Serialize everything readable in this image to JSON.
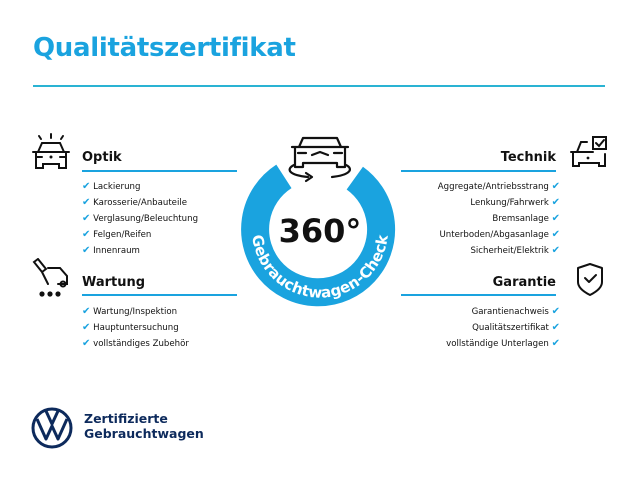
{
  "title": "Qualitätszertifikat",
  "center": {
    "degrees": "360°",
    "ring_text": "Gebrauchtwagen-Check"
  },
  "colors": {
    "accent": "#1aa3df",
    "brand_dark": "#0d2a5c"
  },
  "sections": {
    "optik": {
      "icon": "car-lights-icon",
      "heading": "Optik",
      "items": [
        "Lackierung",
        "Karosserie/Anbauteile",
        "Verglasung/Beleuchtung",
        "Felgen/Reifen",
        "Innenraum"
      ]
    },
    "wartung": {
      "icon": "maintenance-car-icon",
      "heading": "Wartung",
      "items": [
        "Wartung/Inspektion",
        "Hauptuntersuchung",
        "vollständiges Zubehör"
      ]
    },
    "technik": {
      "icon": "car-checkbox-icon",
      "heading": "Technik",
      "items": [
        "Aggregate/Antriebsstrang",
        "Lenkung/Fahrwerk",
        "Bremsanlage",
        "Unterboden/Abgasanlage",
        "Sicherheit/Elektrik"
      ]
    },
    "garantie": {
      "icon": "shield-check-icon",
      "heading": "Garantie",
      "items": [
        "Garantienachweis",
        "Qualitätszertifikat",
        "vollständige Unterlagen"
      ]
    }
  },
  "check_glyph": "✔",
  "footer": {
    "line1": "Zertifizierte",
    "line2": "Gebrauchtwagen"
  }
}
